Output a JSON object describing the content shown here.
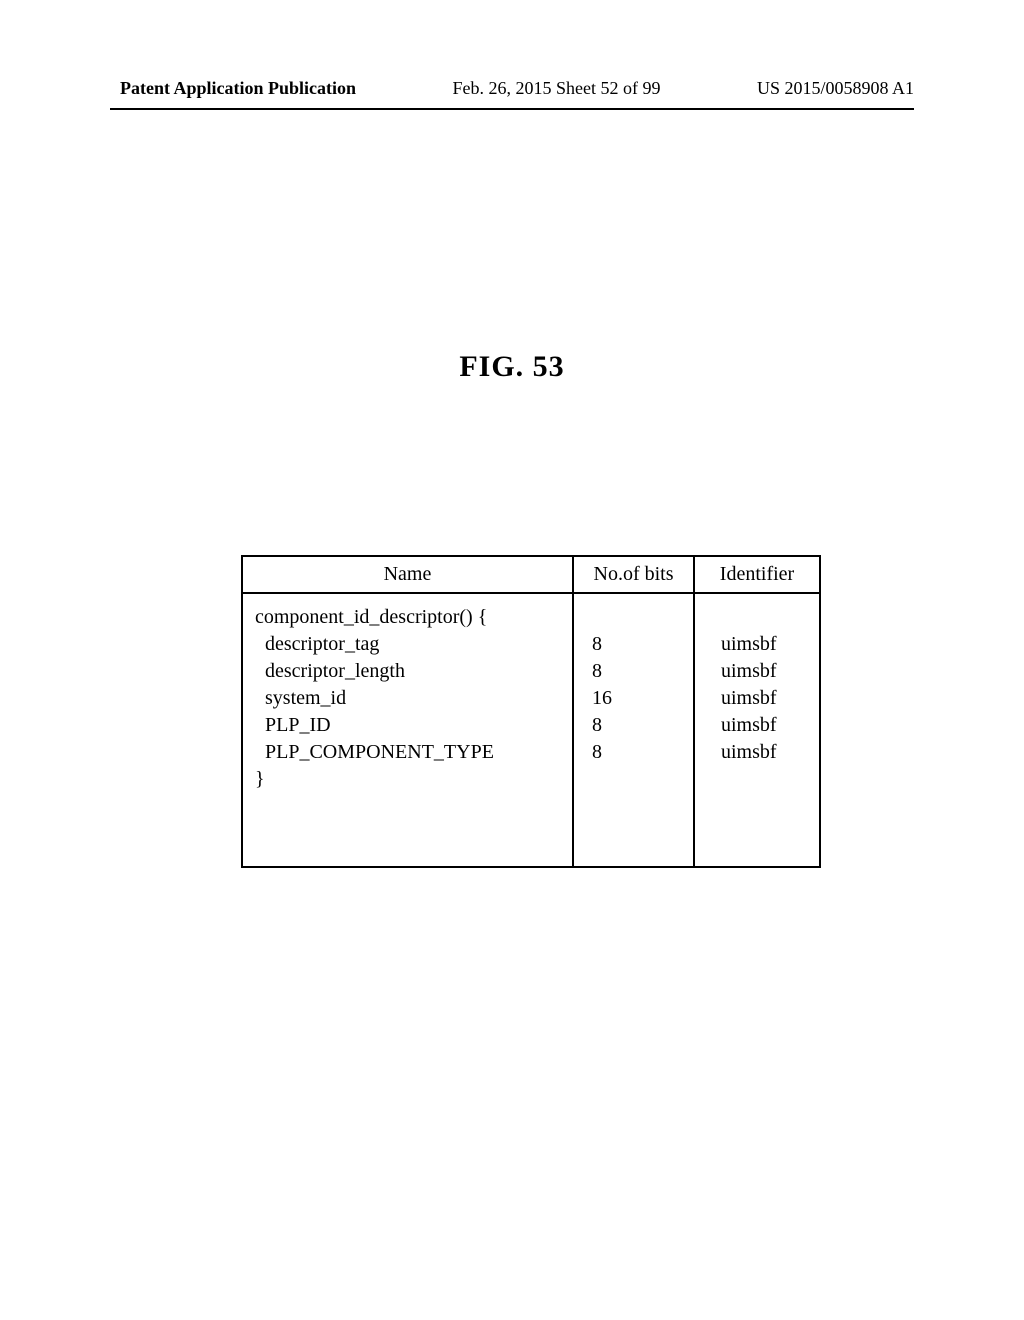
{
  "header": {
    "left": "Patent Application Publication",
    "center": "Feb. 26, 2015  Sheet 52 of 99",
    "right": "US 2015/0058908 A1"
  },
  "figure": {
    "title": "FIG. 53"
  },
  "table": {
    "columns": [
      "Name",
      "No.of bits",
      "Identifier"
    ],
    "code_lines": "component_id_descriptor() {\n  descriptor_tag\n  descriptor_length\n  system_id\n  PLP_ID\n  PLP_COMPONENT_TYPE\n}",
    "bits_lines": "\n8\n8\n16\n8\n8",
    "ident_lines": "\nuimsbf\nuimsbf\nuimsbf\nuimsbf\nuimsbf",
    "border_color": "#000000",
    "font_size_header": 20,
    "font_size_body": 20
  }
}
